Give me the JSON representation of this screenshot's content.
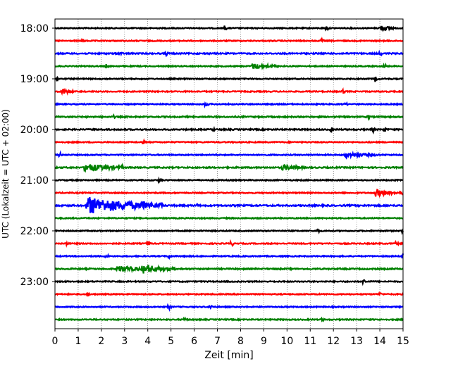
{
  "chart_data": {
    "type": "line",
    "title": "",
    "xlabel": "Zeit  [min]",
    "ylabel": "UTC (Lokalzeit = UTC + 02:00)",
    "xlim": [
      0,
      15
    ],
    "x_ticks": [
      0,
      1,
      2,
      3,
      4,
      5,
      6,
      7,
      8,
      9,
      10,
      11,
      12,
      13,
      14,
      15
    ],
    "grid": "vertical dotted",
    "trace_colors": [
      "#000000",
      "#ff0000",
      "#0000ff",
      "#008000"
    ],
    "y_ticks": [
      "18:00",
      "19:00",
      "20:00",
      "21:00",
      "22:00",
      "23:00"
    ],
    "trace_interval_minutes": 15,
    "traces": [
      {
        "start": "18:00",
        "noise": 0.6,
        "events": [
          {
            "t": 7.3,
            "amp": 3
          },
          {
            "t": 11.7,
            "amp": 3
          },
          {
            "t": 14.0,
            "amp": 3.5,
            "dur": 0.6
          }
        ]
      },
      {
        "start": "18:15",
        "noise": 0.6,
        "events": [
          {
            "t": 1.2,
            "amp": 2
          },
          {
            "t": 11.5,
            "amp": 2
          }
        ]
      },
      {
        "start": "18:30",
        "noise": 0.7,
        "events": [
          {
            "t": 2.8,
            "amp": 2
          },
          {
            "t": 4.8,
            "amp": 2
          },
          {
            "t": 14.0,
            "amp": 2.5
          }
        ]
      },
      {
        "start": "18:45",
        "noise": 0.6,
        "events": [
          {
            "t": 2.2,
            "amp": 2
          },
          {
            "t": 8.5,
            "amp": 3,
            "dur": 1.2
          },
          {
            "t": 14.2,
            "amp": 3
          }
        ]
      },
      {
        "start": "19:00",
        "noise": 0.6,
        "events": [
          {
            "t": 0.1,
            "amp": 3
          },
          {
            "t": 13.8,
            "amp": 3
          }
        ]
      },
      {
        "start": "19:15",
        "noise": 0.6,
        "events": [
          {
            "t": 0.3,
            "amp": 3,
            "dur": 0.5
          },
          {
            "t": 12.4,
            "amp": 3
          }
        ]
      },
      {
        "start": "19:30",
        "noise": 0.6,
        "events": [
          {
            "t": 6.5,
            "amp": 3
          },
          {
            "t": 12.5,
            "amp": 2
          }
        ]
      },
      {
        "start": "19:45",
        "noise": 0.7,
        "events": [
          {
            "t": 2.5,
            "amp": 2
          },
          {
            "t": 13.5,
            "amp": 2
          }
        ]
      },
      {
        "start": "20:00",
        "noise": 0.7,
        "events": [
          {
            "t": 6.8,
            "amp": 2
          },
          {
            "t": 11.9,
            "amp": 3
          },
          {
            "t": 13.7,
            "amp": 3
          },
          {
            "t": 14.2,
            "amp": 3
          }
        ]
      },
      {
        "start": "20:15",
        "noise": 0.6,
        "events": [
          {
            "t": 3.8,
            "amp": 2
          }
        ]
      },
      {
        "start": "20:30",
        "noise": 0.6,
        "events": [
          {
            "t": 0.2,
            "amp": 3
          },
          {
            "t": 12.5,
            "amp": 2.5,
            "dur": 1.5
          }
        ]
      },
      {
        "start": "20:45",
        "noise": 0.7,
        "events": [
          {
            "t": 1.3,
            "amp": 4.5,
            "dur": 1.6
          },
          {
            "t": 9.8,
            "amp": 3,
            "dur": 1.0
          },
          {
            "t": 2.9,
            "amp": 2
          }
        ]
      },
      {
        "start": "21:00",
        "noise": 0.6,
        "events": [
          {
            "t": 4.5,
            "amp": 2
          }
        ]
      },
      {
        "start": "21:15",
        "noise": 0.6,
        "events": [
          {
            "t": 13.8,
            "amp": 4,
            "dur": 1.1
          },
          {
            "t": 15.0,
            "amp": 6
          }
        ]
      },
      {
        "start": "21:30",
        "noise": 0.8,
        "events": [
          {
            "t": 1.4,
            "amp": 10,
            "dur": 3.3
          },
          {
            "t": 3.8,
            "amp": 2.5
          },
          {
            "t": 6.1,
            "amp": 2
          }
        ]
      },
      {
        "start": "21:45",
        "noise": 0.6,
        "events": []
      },
      {
        "start": "22:00",
        "noise": 0.6,
        "events": [
          {
            "t": 11.3,
            "amp": 3
          },
          {
            "t": 15.0,
            "amp": 3
          }
        ]
      },
      {
        "start": "22:15",
        "noise": 0.6,
        "events": [
          {
            "t": 0.5,
            "amp": 3
          },
          {
            "t": 4.0,
            "amp": 3
          },
          {
            "t": 7.6,
            "amp": 4
          },
          {
            "t": 14.7,
            "amp": 3
          }
        ]
      },
      {
        "start": "22:30",
        "noise": 0.6,
        "events": [
          {
            "t": 2.2,
            "amp": 3
          },
          {
            "t": 4.9,
            "amp": 3
          },
          {
            "t": 15.0,
            "amp": 3
          }
        ]
      },
      {
        "start": "22:45",
        "noise": 0.7,
        "events": [
          {
            "t": 2.7,
            "amp": 3,
            "dur": 1.6
          },
          {
            "t": 3.8,
            "amp": 4,
            "dur": 1.4
          }
        ]
      },
      {
        "start": "23:00",
        "noise": 0.6,
        "events": [
          {
            "t": 13.3,
            "amp": 3
          }
        ]
      },
      {
        "start": "23:15",
        "noise": 0.6,
        "events": [
          {
            "t": 1.4,
            "amp": 2.5
          },
          {
            "t": 14.0,
            "amp": 2
          }
        ]
      },
      {
        "start": "23:30",
        "noise": 0.6,
        "events": [
          {
            "t": 4.9,
            "amp": 3
          },
          {
            "t": 6.7,
            "amp": 3
          }
        ]
      },
      {
        "start": "23:45",
        "noise": 0.6,
        "events": [
          {
            "t": 5.6,
            "amp": 2
          },
          {
            "t": 11.5,
            "amp": 2
          }
        ]
      }
    ]
  }
}
